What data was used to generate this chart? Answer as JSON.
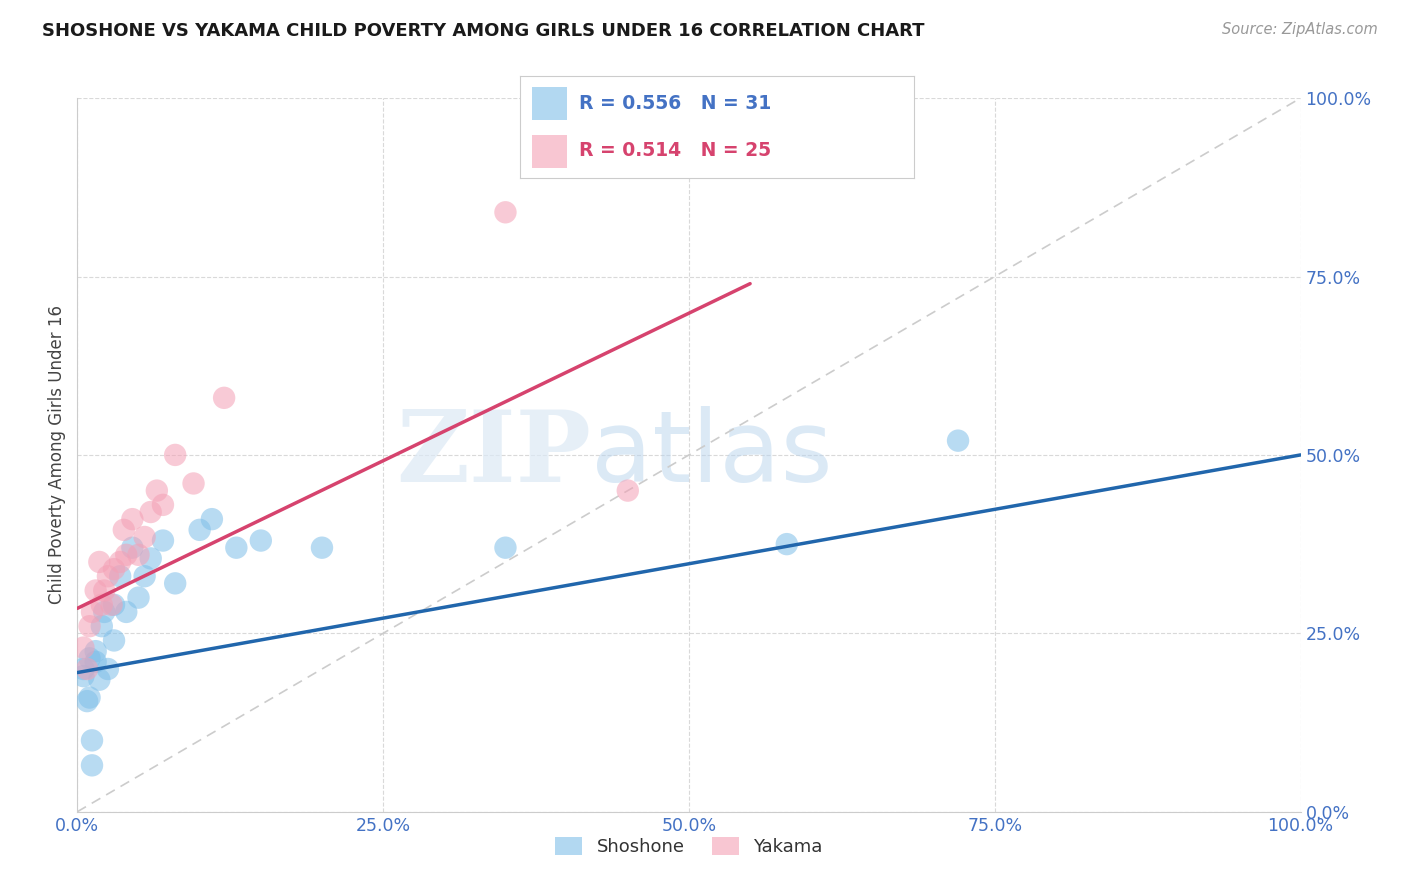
{
  "title": "SHOSHONE VS YAKAMA CHILD POVERTY AMONG GIRLS UNDER 16 CORRELATION CHART",
  "source": "Source: ZipAtlas.com",
  "ylabel": "Child Poverty Among Girls Under 16",
  "xlim": [
    0,
    1
  ],
  "ylim": [
    0,
    1
  ],
  "xticks": [
    0.0,
    0.25,
    0.5,
    0.75,
    1.0
  ],
  "yticks": [
    0.0,
    0.25,
    0.5,
    0.75,
    1.0
  ],
  "xticklabels": [
    "0.0%",
    "25.0%",
    "50.0%",
    "75.0%",
    "100.0%"
  ],
  "yticklabels": [
    "0.0%",
    "25.0%",
    "50.0%",
    "75.0%",
    "100.0%"
  ],
  "shoshone_color": "#7fbee8",
  "yakama_color": "#f4a0b5",
  "shoshone_line_color": "#2166ac",
  "yakama_line_color": "#d6436e",
  "diagonal_color": "#cccccc",
  "R_shoshone": 0.556,
  "N_shoshone": 31,
  "R_yakama": 0.514,
  "N_yakama": 25,
  "watermark_zip": "ZIP",
  "watermark_atlas": "atlas",
  "background_color": "#ffffff",
  "shoshone_x": [
    0.005,
    0.005,
    0.008,
    0.01,
    0.01,
    0.012,
    0.012,
    0.015,
    0.015,
    0.018,
    0.02,
    0.022,
    0.025,
    0.03,
    0.03,
    0.035,
    0.04,
    0.045,
    0.05,
    0.055,
    0.06,
    0.07,
    0.08,
    0.1,
    0.11,
    0.13,
    0.15,
    0.2,
    0.35,
    0.58,
    0.72
  ],
  "shoshone_y": [
    0.19,
    0.2,
    0.155,
    0.215,
    0.16,
    0.1,
    0.065,
    0.21,
    0.225,
    0.185,
    0.26,
    0.28,
    0.2,
    0.29,
    0.24,
    0.33,
    0.28,
    0.37,
    0.3,
    0.33,
    0.355,
    0.38,
    0.32,
    0.395,
    0.41,
    0.37,
    0.38,
    0.37,
    0.37,
    0.375,
    0.52
  ],
  "yakama_x": [
    0.005,
    0.008,
    0.01,
    0.012,
    0.015,
    0.018,
    0.02,
    0.022,
    0.025,
    0.028,
    0.03,
    0.035,
    0.038,
    0.04,
    0.045,
    0.05,
    0.055,
    0.06,
    0.065,
    0.07,
    0.08,
    0.095,
    0.12,
    0.35,
    0.45
  ],
  "yakama_y": [
    0.23,
    0.2,
    0.26,
    0.28,
    0.31,
    0.35,
    0.29,
    0.31,
    0.33,
    0.29,
    0.34,
    0.35,
    0.395,
    0.36,
    0.41,
    0.36,
    0.385,
    0.42,
    0.45,
    0.43,
    0.5,
    0.46,
    0.58,
    0.84,
    0.45
  ],
  "title_color": "#1a1a1a",
  "axis_label_color": "#444444",
  "tick_color": "#4472c4",
  "grid_color": "#d0d0d0",
  "legend_R_color": "#4472c4",
  "legend_R2_color": "#d6436e",
  "shoshone_line_start_x": 0.0,
  "shoshone_line_end_x": 1.0,
  "shoshone_line_start_y": 0.195,
  "shoshone_line_end_y": 0.5,
  "yakama_line_start_x": 0.0,
  "yakama_line_end_x": 0.55,
  "yakama_line_start_y": 0.285,
  "yakama_line_end_y": 0.74
}
